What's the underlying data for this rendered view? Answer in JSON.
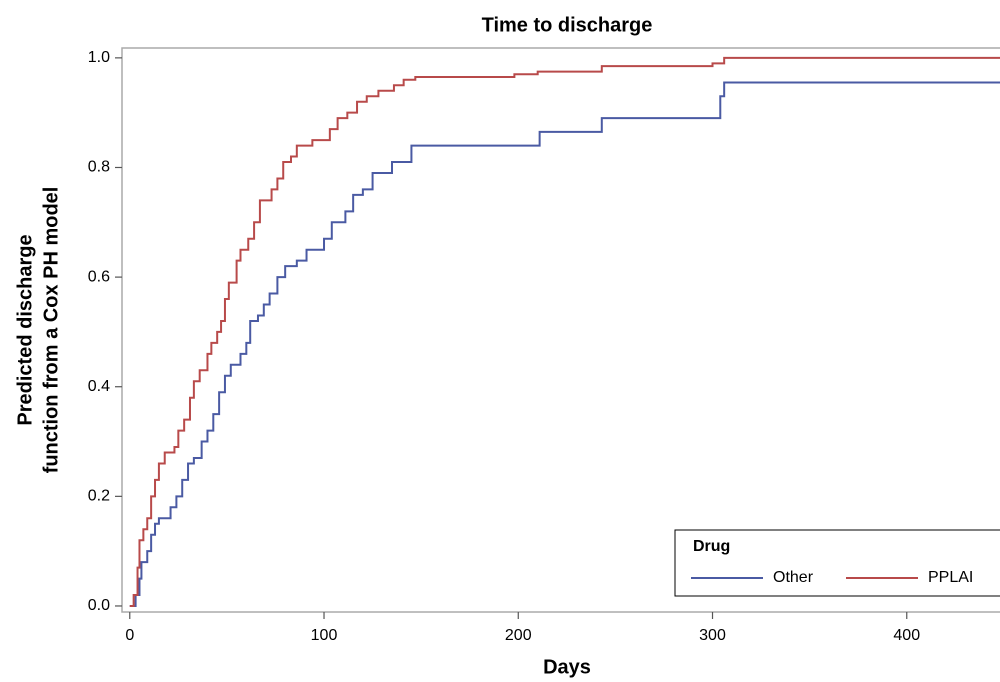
{
  "chart_data": {
    "type": "step",
    "title": "Time to discharge",
    "xlabel": "Days",
    "ylabel": [
      "Predicted discharge",
      "function from a Cox PH model"
    ],
    "xlim": [
      -4,
      448
    ],
    "ylim": [
      -0.011,
      1.018
    ],
    "xticks": [
      0,
      100,
      200,
      300,
      400
    ],
    "yticks": [
      {
        "value": 0,
        "label": "0.0"
      },
      0.2,
      0.4,
      0.6,
      0.8,
      {
        "value": 1,
        "label": "1.0"
      }
    ],
    "legend_title": "Drug",
    "legend_position": "lower right",
    "series": [
      {
        "name": "Other",
        "color": "#4a5aa3",
        "x": [
          0,
          3,
          5,
          6,
          9,
          11,
          13,
          15,
          21,
          24,
          27,
          30,
          33,
          37,
          40,
          43,
          46,
          49,
          52,
          57,
          60,
          62,
          66,
          69,
          72,
          76,
          80,
          86,
          91,
          100,
          104,
          111,
          115,
          120,
          125,
          135,
          145,
          211,
          243,
          304,
          306
        ],
        "values": [
          0,
          0.02,
          0.05,
          0.08,
          0.1,
          0.13,
          0.15,
          0.16,
          0.18,
          0.2,
          0.23,
          0.26,
          0.27,
          0.3,
          0.32,
          0.35,
          0.39,
          0.42,
          0.44,
          0.46,
          0.48,
          0.52,
          0.53,
          0.55,
          0.57,
          0.6,
          0.62,
          0.63,
          0.65,
          0.67,
          0.7,
          0.72,
          0.75,
          0.76,
          0.79,
          0.81,
          0.84,
          0.865,
          0.89,
          0.93,
          0.955
        ]
      },
      {
        "name": "PPLAI",
        "color": "#b84a4a",
        "x": [
          0,
          2,
          4,
          5,
          7,
          9,
          11,
          13,
          15,
          18,
          23,
          25,
          28,
          31,
          33,
          36,
          40,
          42,
          45,
          47,
          49,
          51,
          55,
          57,
          61,
          64,
          67,
          73,
          76,
          79,
          83,
          86,
          94,
          103,
          107,
          112,
          117,
          122,
          128,
          136,
          141,
          147,
          198,
          210,
          243,
          300,
          306
        ],
        "values": [
          0,
          0.02,
          0.07,
          0.12,
          0.14,
          0.16,
          0.2,
          0.23,
          0.26,
          0.28,
          0.29,
          0.32,
          0.34,
          0.38,
          0.41,
          0.43,
          0.46,
          0.48,
          0.5,
          0.52,
          0.56,
          0.59,
          0.63,
          0.65,
          0.67,
          0.7,
          0.74,
          0.76,
          0.78,
          0.81,
          0.82,
          0.84,
          0.85,
          0.87,
          0.89,
          0.9,
          0.92,
          0.93,
          0.94,
          0.95,
          0.96,
          0.965,
          0.97,
          0.975,
          0.985,
          0.99,
          1.0
        ]
      }
    ]
  }
}
